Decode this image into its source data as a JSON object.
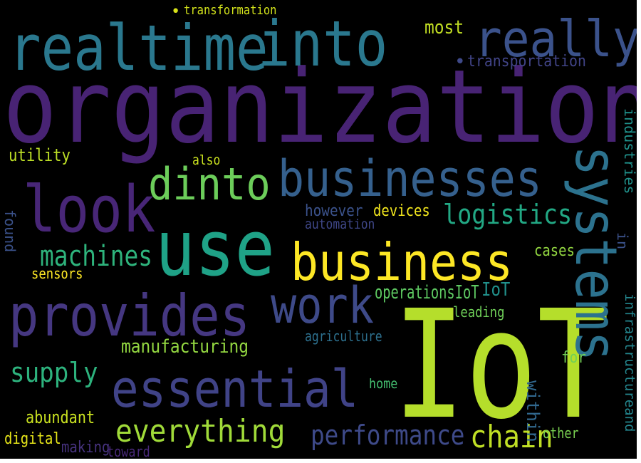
{
  "words": [
    {
      "id": "organizations",
      "text": "organizations",
      "color": "#482374"
    },
    {
      "id": "iot-large",
      "text": "IoT",
      "color": "#b5de2b"
    },
    {
      "id": "use",
      "text": "use",
      "color": "#1fa287"
    },
    {
      "id": "realtime",
      "text": "realtime",
      "color": "#2a788e"
    },
    {
      "id": "into",
      "text": "into",
      "color": "#2a788e"
    },
    {
      "id": "really",
      "text": "really",
      "color": "#3b528b"
    },
    {
      "id": "businesses",
      "text": "businesses",
      "color": "#35608d"
    },
    {
      "id": "look",
      "text": "look",
      "color": "#482677"
    },
    {
      "id": "dinto",
      "text": "dinto",
      "color": "#6ccd5a"
    },
    {
      "id": "business",
      "text": "business",
      "color": "#fde725"
    },
    {
      "id": "provides",
      "text": "provides",
      "color": "#453781"
    },
    {
      "id": "work",
      "text": "work",
      "color": "#3e4a89"
    },
    {
      "id": "essential",
      "text": "essential",
      "color": "#404387"
    },
    {
      "id": "systems",
      "text": "systems",
      "color": "#2c728e"
    },
    {
      "id": "everything",
      "text": "everything",
      "color": "#a0da39"
    },
    {
      "id": "performance",
      "text": "performance",
      "color": "#3e4a89"
    },
    {
      "id": "chain",
      "text": "chain",
      "color": "#c0df25"
    },
    {
      "id": "supply",
      "text": "supply",
      "color": "#2db27d"
    },
    {
      "id": "machines",
      "text": "machines",
      "color": "#2eb37c"
    },
    {
      "id": "logistics",
      "text": "logistics",
      "color": "#22a884"
    },
    {
      "id": "manufacturing",
      "text": "manufacturing",
      "color": "#93d741"
    },
    {
      "id": "operationsiot",
      "text": "operationsIoT",
      "color": "#5ec962"
    },
    {
      "id": "infrastructureand",
      "text": "infrastructureand",
      "color": "#24868e"
    },
    {
      "id": "industries",
      "text": "industries",
      "color": "#20928c"
    },
    {
      "id": "transformation",
      "text": "transformation",
      "color": "#d2e21b"
    },
    {
      "id": "transportation",
      "text": "transportation",
      "color": "#414487"
    },
    {
      "id": "most",
      "text": "most",
      "color": "#c2df23"
    },
    {
      "id": "utility",
      "text": "utility",
      "color": "#bddf26"
    },
    {
      "id": "also",
      "text": "also",
      "color": "#cae11f"
    },
    {
      "id": "however",
      "text": "however",
      "color": "#3b528b"
    },
    {
      "id": "devices",
      "text": "devices",
      "color": "#f1e51d"
    },
    {
      "id": "automation",
      "text": "automation",
      "color": "#3f4788"
    },
    {
      "id": "sensors",
      "text": "sensors",
      "color": "#fde725"
    },
    {
      "id": "cases",
      "text": "cases",
      "color": "#93d741"
    },
    {
      "id": "leading",
      "text": "leading",
      "color": "#6ece58"
    },
    {
      "id": "agriculture",
      "text": "agriculture",
      "color": "#2d708e"
    },
    {
      "id": "abundant",
      "text": "abundant",
      "color": "#c8e020"
    },
    {
      "id": "digital",
      "text": "digital",
      "color": "#e5e419"
    },
    {
      "id": "making",
      "text": "making",
      "color": "#46327e"
    },
    {
      "id": "toward",
      "text": "toward",
      "color": "#482878"
    },
    {
      "id": "found",
      "text": "found",
      "color": "#3b528b"
    },
    {
      "id": "within",
      "text": "within",
      "color": "#31688e"
    },
    {
      "id": "for",
      "text": "for",
      "color": "#73d056"
    },
    {
      "id": "home",
      "text": "home",
      "color": "#44bf70"
    },
    {
      "id": "other",
      "text": "other",
      "color": "#7ad151"
    },
    {
      "id": "in",
      "text": "in",
      "color": "#3b528b"
    },
    {
      "id": "iot-small",
      "text": "IoT",
      "color": "#21918c"
    },
    {
      "id": "dot-1",
      "text": "•",
      "color": "#d8e219"
    },
    {
      "id": "dot-2",
      "text": "•",
      "color": "#3e4989"
    }
  ]
}
